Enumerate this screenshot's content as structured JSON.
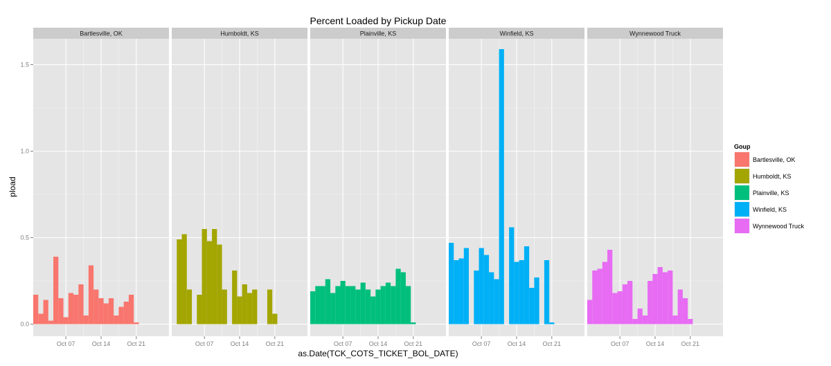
{
  "chart_data": {
    "type": "bar",
    "title": "Percent Loaded by Pickup Date",
    "xlabel": "as.Date(TCK_COTS_TICKET_BOL_DATE)",
    "ylabel": "pload",
    "ylim": [
      -0.07,
      1.65
    ],
    "xlim": [
      0.5,
      27.5
    ],
    "y_ticks": [
      0.0,
      0.5,
      1.0,
      1.5
    ],
    "y_tick_labels": [
      "0.0",
      "0.5",
      "1.0",
      "1.5"
    ],
    "x_ticks": [
      7,
      14,
      21
    ],
    "x_tick_labels": [
      "Oct 07",
      "Oct 14",
      "Oct 21"
    ],
    "grid": true,
    "legend_title": "Goup",
    "legend_position": "right",
    "series": [
      {
        "name": "Bartlesville, OK",
        "color": "#F8766D",
        "days": [
          1,
          2,
          3,
          4,
          5,
          6,
          7,
          8,
          9,
          10,
          11,
          12,
          13,
          14,
          15,
          16,
          17,
          18,
          19,
          20,
          21,
          22
        ],
        "values": [
          0.17,
          0.06,
          0.14,
          0.02,
          0.39,
          0.15,
          0.04,
          0.18,
          0.17,
          0.23,
          0.05,
          0.34,
          0.2,
          0.15,
          0.12,
          0.15,
          0.05,
          0.1,
          0.13,
          0.17,
          0.01,
          0.0
        ]
      },
      {
        "name": "Humboldt, KS",
        "color": "#A3A500",
        "days": [
          2,
          3,
          4,
          6,
          7,
          8,
          9,
          10,
          11,
          13,
          14,
          15,
          16,
          17,
          20,
          21
        ],
        "values": [
          0.49,
          0.52,
          0.2,
          0.17,
          0.55,
          0.48,
          0.55,
          0.46,
          0.2,
          0.31,
          0.16,
          0.23,
          0.18,
          0.2,
          0.2,
          0.06
        ]
      },
      {
        "name": "Plainville, KS",
        "color": "#00BF7D",
        "days": [
          1,
          2,
          3,
          4,
          5,
          6,
          7,
          8,
          9,
          10,
          11,
          12,
          13,
          14,
          15,
          16,
          17,
          18,
          19,
          20,
          21
        ],
        "values": [
          0.19,
          0.22,
          0.22,
          0.26,
          0.18,
          0.22,
          0.25,
          0.22,
          0.22,
          0.2,
          0.24,
          0.2,
          0.16,
          0.2,
          0.22,
          0.24,
          0.22,
          0.32,
          0.3,
          0.22,
          0.01
        ]
      },
      {
        "name": "Winfield, KS",
        "color": "#00B0F6",
        "days": [
          1,
          2,
          3,
          4,
          6,
          7,
          8,
          9,
          10,
          11,
          13,
          14,
          15,
          16,
          17,
          18,
          20,
          21
        ],
        "values": [
          0.47,
          0.37,
          0.38,
          0.44,
          0.31,
          0.44,
          0.4,
          0.3,
          0.26,
          1.59,
          0.56,
          0.36,
          0.37,
          0.45,
          0.21,
          0.27,
          0.37,
          0.01
        ]
      },
      {
        "name": "Wynnewood Truck",
        "color": "#E76BF3",
        "days": [
          1,
          2,
          3,
          4,
          5,
          6,
          7,
          8,
          9,
          10,
          11,
          12,
          13,
          14,
          15,
          16,
          17,
          18,
          19,
          20,
          21,
          22
        ],
        "values": [
          0.14,
          0.31,
          0.32,
          0.36,
          0.43,
          0.18,
          0.19,
          0.23,
          0.25,
          0.03,
          0.09,
          0.05,
          0.25,
          0.29,
          0.33,
          0.3,
          0.31,
          0.05,
          0.2,
          0.15,
          0.03,
          0.0
        ]
      }
    ]
  }
}
